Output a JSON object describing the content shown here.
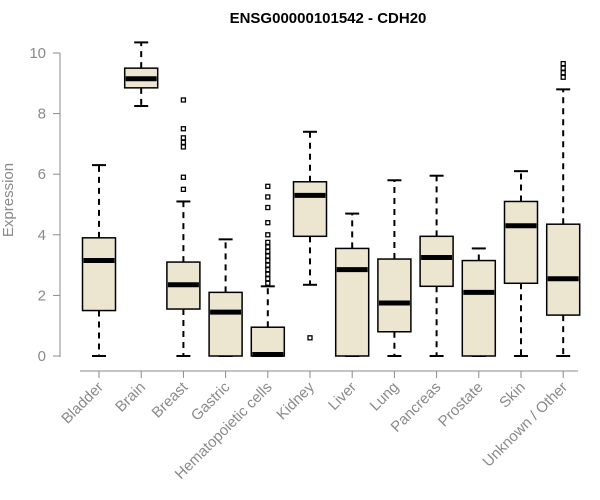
{
  "chart_data": {
    "type": "boxplot",
    "title": "ENSG00000101542 - CDH20",
    "xlabel": "",
    "ylabel": "Expression",
    "ylim": [
      0,
      10
    ],
    "yticks": [
      0,
      2,
      4,
      6,
      8,
      10
    ],
    "box_color": "#ece6d0",
    "categories": [
      "Bladder",
      "Brain",
      "Breast",
      "Gastric",
      "Hematopoietic cells",
      "Kidney",
      "Liver",
      "Lung",
      "Pancreas",
      "Prostate",
      "Skin",
      "Unknown / Other"
    ],
    "boxes": [
      {
        "category": "Bladder",
        "min": 0,
        "q1": 1.5,
        "median": 3.15,
        "q3": 3.9,
        "max": 6.3,
        "outliers": []
      },
      {
        "category": "Brain",
        "min": 8.25,
        "q1": 8.85,
        "median": 9.15,
        "q3": 9.5,
        "max": 10.35,
        "outliers": []
      },
      {
        "category": "Breast",
        "min": 0,
        "q1": 1.55,
        "median": 2.35,
        "q3": 3.1,
        "max": 5.1,
        "outliers": [
          5.5,
          5.9,
          6.9,
          7.05,
          7.2,
          7.5,
          8.45
        ]
      },
      {
        "category": "Gastric",
        "min": 0,
        "q1": 0,
        "median": 1.45,
        "q3": 2.1,
        "max": 3.85,
        "outliers": []
      },
      {
        "category": "Hematopoietic cells",
        "min": 0,
        "q1": 0,
        "median": 0.05,
        "q3": 0.95,
        "max": 2.3,
        "outliers": [
          2.4,
          2.55,
          2.7,
          2.85,
          3.0,
          3.15,
          3.3,
          3.45,
          3.6,
          3.75,
          4.0,
          4.4,
          4.9,
          5.25,
          5.6
        ]
      },
      {
        "category": "Kidney",
        "min": 2.35,
        "q1": 3.95,
        "median": 5.3,
        "q3": 5.75,
        "max": 7.4,
        "outliers": [
          0.6
        ]
      },
      {
        "category": "Liver",
        "min": 0,
        "q1": 0,
        "median": 2.85,
        "q3": 3.55,
        "max": 4.7,
        "outliers": []
      },
      {
        "category": "Lung",
        "min": 0,
        "q1": 0.8,
        "median": 1.75,
        "q3": 3.2,
        "max": 5.8,
        "outliers": []
      },
      {
        "category": "Pancreas",
        "min": 0,
        "q1": 2.3,
        "median": 3.25,
        "q3": 3.95,
        "max": 5.95,
        "outliers": []
      },
      {
        "category": "Prostate",
        "min": 0,
        "q1": 0,
        "median": 2.1,
        "q3": 3.15,
        "max": 3.55,
        "outliers": []
      },
      {
        "category": "Skin",
        "min": 0,
        "q1": 2.4,
        "median": 4.3,
        "q3": 5.1,
        "max": 6.1,
        "outliers": []
      },
      {
        "category": "Unknown / Other",
        "min": 0,
        "q1": 1.35,
        "median": 2.55,
        "q3": 4.35,
        "max": 8.8,
        "outliers": [
          9.2,
          9.35,
          9.5,
          9.65
        ]
      }
    ]
  }
}
